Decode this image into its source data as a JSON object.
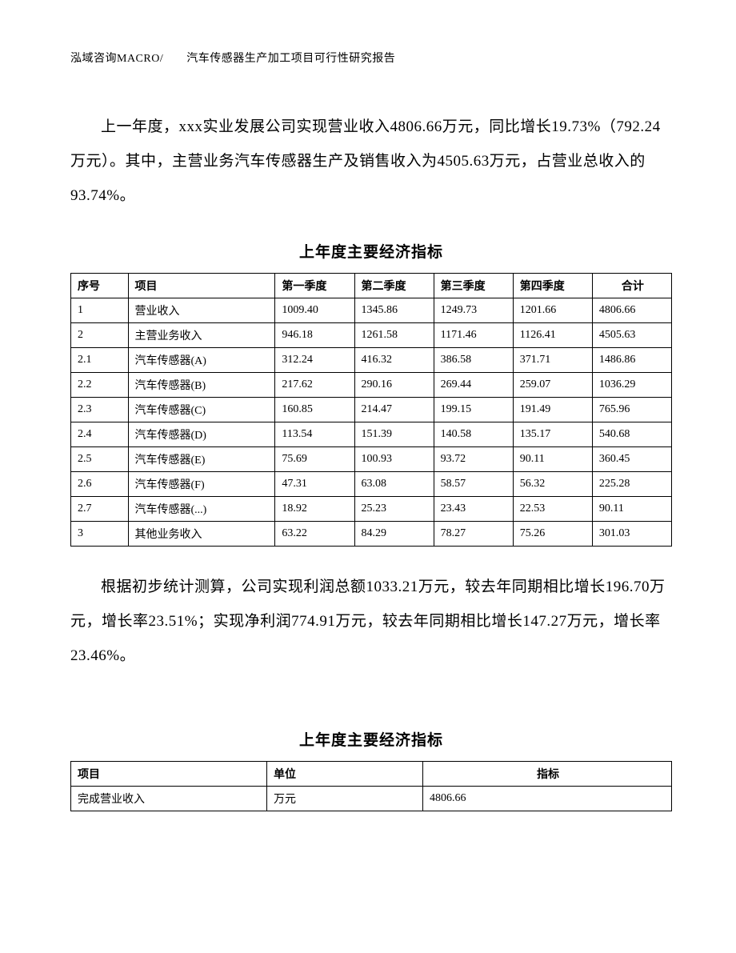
{
  "header": "泓域咨询MACRO/　　汽车传感器生产加工项目可行性研究报告",
  "para1": "上一年度，xxx实业发展公司实现营业收入4806.66万元，同比增长19.73%（792.24万元）。其中，主营业务汽车传感器生产及销售收入为4505.63万元，占营业总收入的93.74%。",
  "table1": {
    "title": "上年度主要经济指标",
    "columns": [
      "序号",
      "项目",
      "第一季度",
      "第二季度",
      "第三季度",
      "第四季度",
      "合计"
    ],
    "col_align": [
      "left",
      "left",
      "left",
      "left",
      "left",
      "left",
      "center"
    ],
    "rows": [
      [
        "1",
        "营业收入",
        "1009.40",
        "1345.86",
        "1249.73",
        "1201.66",
        "4806.66"
      ],
      [
        "2",
        "主营业务收入",
        "946.18",
        "1261.58",
        "1171.46",
        "1126.41",
        "4505.63"
      ],
      [
        "2.1",
        "汽车传感器(A)",
        "312.24",
        "416.32",
        "386.58",
        "371.71",
        "1486.86"
      ],
      [
        "2.2",
        "汽车传感器(B)",
        "217.62",
        "290.16",
        "269.44",
        "259.07",
        "1036.29"
      ],
      [
        "2.3",
        "汽车传感器(C)",
        "160.85",
        "214.47",
        "199.15",
        "191.49",
        "765.96"
      ],
      [
        "2.4",
        "汽车传感器(D)",
        "113.54",
        "151.39",
        "140.58",
        "135.17",
        "540.68"
      ],
      [
        "2.5",
        "汽车传感器(E)",
        "75.69",
        "100.93",
        "93.72",
        "90.11",
        "360.45"
      ],
      [
        "2.6",
        "汽车传感器(F)",
        "47.31",
        "63.08",
        "58.57",
        "56.32",
        "225.28"
      ],
      [
        "2.7",
        "汽车传感器(...)",
        "18.92",
        "25.23",
        "23.43",
        "22.53",
        "90.11"
      ],
      [
        "3",
        "其他业务收入",
        "63.22",
        "84.29",
        "78.27",
        "75.26",
        "301.03"
      ]
    ]
  },
  "para2": "根据初步统计测算，公司实现利润总额1033.21万元，较去年同期相比增长196.70万元，增长率23.51%；实现净利润774.91万元，较去年同期相比增长147.27万元，增长率23.46%。",
  "table2": {
    "title": "上年度主要经济指标",
    "columns": [
      "项目",
      "单位",
      "指标"
    ],
    "header_align": [
      "left",
      "left",
      "center"
    ],
    "rows": [
      [
        "完成营业收入",
        "万元",
        "4806.66"
      ]
    ]
  }
}
